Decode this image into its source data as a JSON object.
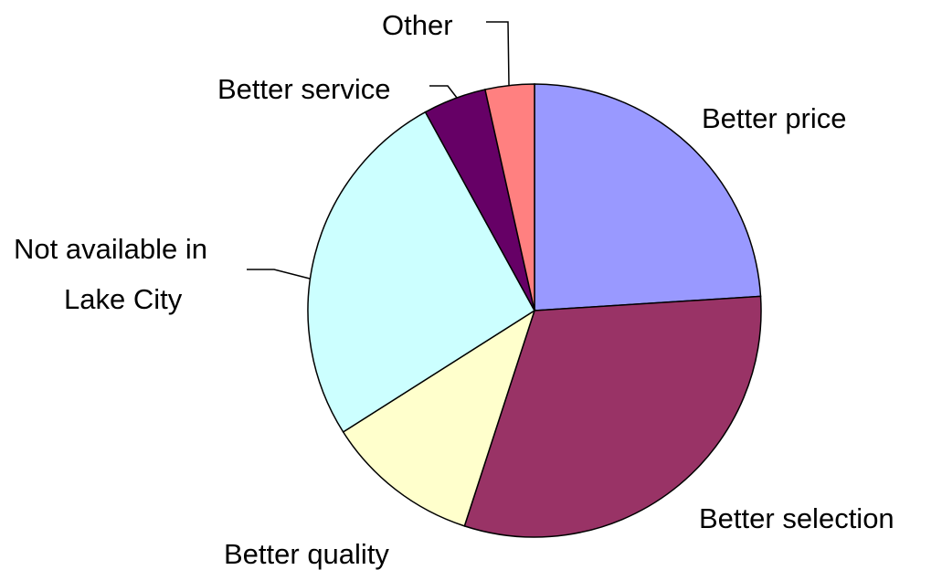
{
  "chart_data": {
    "type": "pie",
    "title": "",
    "start_angle_deg": 0,
    "direction": "clockwise",
    "slices": [
      {
        "name": "Better price",
        "value": 24,
        "color": "#9999ff"
      },
      {
        "name": "Better selection",
        "value": 31,
        "color": "#993366"
      },
      {
        "name": "Better quality",
        "value": 11,
        "color": "#ffffcc"
      },
      {
        "name": "Not available in Lake City",
        "label_lines": [
          "Not available in",
          "Lake City"
        ],
        "value": 26,
        "color": "#ccffff"
      },
      {
        "name": "Better service",
        "value": 4.5,
        "color": "#660066"
      },
      {
        "name": "Other",
        "value": 3.5,
        "color": "#ff8080"
      }
    ],
    "legend": "none",
    "data_labels": "category-name"
  }
}
